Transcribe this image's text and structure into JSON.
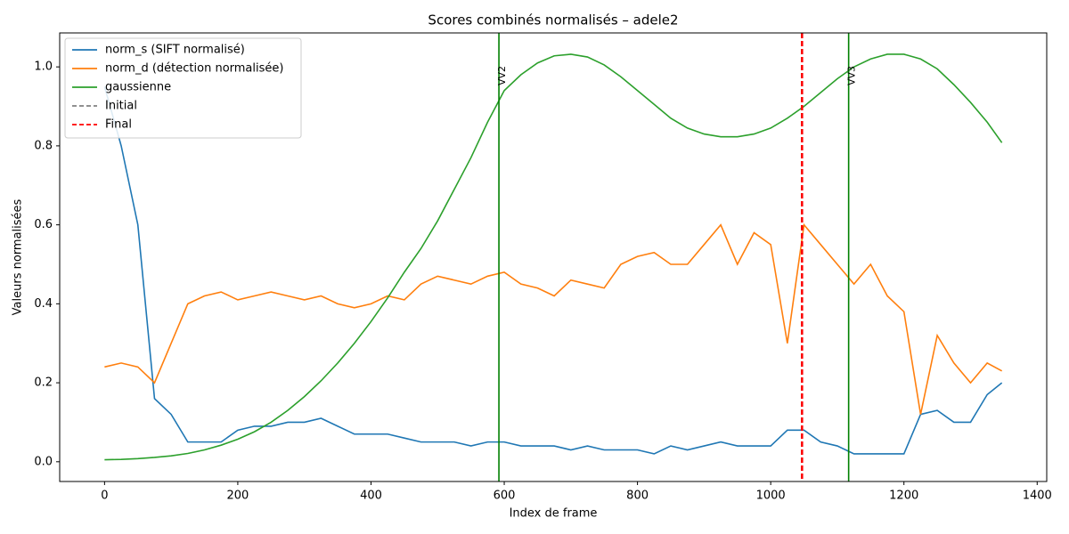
{
  "chart_data": {
    "type": "line",
    "title": "Scores combinés normalisés – adele2",
    "x_label": "Index de frame",
    "y_label": "Valeurs normalisées",
    "x": [
      0,
      25,
      50,
      75,
      100,
      125,
      150,
      175,
      200,
      225,
      250,
      275,
      300,
      325,
      350,
      375,
      400,
      425,
      450,
      475,
      500,
      525,
      550,
      575,
      600,
      625,
      650,
      675,
      700,
      725,
      750,
      775,
      800,
      825,
      850,
      875,
      900,
      925,
      950,
      975,
      1000,
      1025,
      1050,
      1075,
      1100,
      1125,
      1150,
      1175,
      1200,
      1225,
      1250,
      1275,
      1300,
      1325,
      1347
    ],
    "series": [
      {
        "name": "norm_s (SIFT normalisé)",
        "color": "#1f77b4",
        "values": [
          0.95,
          0.8,
          0.6,
          0.16,
          0.12,
          0.05,
          0.05,
          0.05,
          0.08,
          0.09,
          0.09,
          0.1,
          0.1,
          0.11,
          0.09,
          0.07,
          0.07,
          0.07,
          0.06,
          0.05,
          0.05,
          0.05,
          0.04,
          0.05,
          0.05,
          0.04,
          0.04,
          0.04,
          0.03,
          0.04,
          0.03,
          0.03,
          0.03,
          0.02,
          0.04,
          0.03,
          0.04,
          0.05,
          0.04,
          0.04,
          0.04,
          0.08,
          0.08,
          0.05,
          0.04,
          0.02,
          0.02,
          0.02,
          0.02,
          0.12,
          0.13,
          0.1,
          0.1,
          0.17,
          0.2
        ]
      },
      {
        "name": "norm_d (détection normalisée)",
        "color": "#ff7f0e",
        "values": [
          0.24,
          0.25,
          0.24,
          0.2,
          0.3,
          0.4,
          0.42,
          0.43,
          0.41,
          0.42,
          0.43,
          0.42,
          0.41,
          0.42,
          0.4,
          0.39,
          0.4,
          0.42,
          0.41,
          0.45,
          0.47,
          0.46,
          0.45,
          0.47,
          0.48,
          0.45,
          0.44,
          0.42,
          0.46,
          0.45,
          0.44,
          0.5,
          0.52,
          0.53,
          0.5,
          0.5,
          0.55,
          0.6,
          0.5,
          0.58,
          0.55,
          0.3,
          0.6,
          0.55,
          0.5,
          0.45,
          0.5,
          0.42,
          0.38,
          0.12,
          0.32,
          0.25,
          0.2,
          0.25,
          0.23
        ]
      },
      {
        "name": "gaussienne",
        "color": "#2ca02c",
        "values": [
          0.005,
          0.006,
          0.008,
          0.011,
          0.015,
          0.021,
          0.03,
          0.042,
          0.057,
          0.076,
          0.1,
          0.13,
          0.165,
          0.205,
          0.25,
          0.3,
          0.355,
          0.415,
          0.48,
          0.54,
          0.61,
          0.69,
          0.77,
          0.86,
          0.94,
          0.98,
          1.01,
          1.028,
          1.032,
          1.025,
          1.005,
          0.975,
          0.94,
          0.905,
          0.87,
          0.845,
          0.83,
          0.823,
          0.823,
          0.83,
          0.845,
          0.87,
          0.9,
          0.935,
          0.97,
          1.0,
          1.02,
          1.032,
          1.032,
          1.02,
          0.995,
          0.955,
          0.91,
          0.86,
          0.808
        ]
      }
    ],
    "markers": [
      {
        "label": "VV2",
        "x": 592,
        "color": "#008000"
      },
      {
        "label": "VV3",
        "x": 1117,
        "color": "#008000"
      }
    ],
    "reference_lines": [
      {
        "name": "Initial",
        "x": 1047,
        "color": "#808080"
      },
      {
        "name": "Final",
        "x": 1047,
        "color": "#ff0000"
      }
    ],
    "xlim": [
      -67.35,
      1414.35
    ],
    "ylim": [
      -0.05,
      1.086
    ],
    "xticks": [
      0,
      200,
      400,
      600,
      800,
      1000,
      1200,
      1400
    ],
    "yticks": [
      {
        "value": 0,
        "label": "0.0"
      },
      0.2,
      0.4,
      0.6,
      0.8,
      {
        "value": 1,
        "label": "1.0"
      }
    ],
    "legend": "upper-left"
  }
}
